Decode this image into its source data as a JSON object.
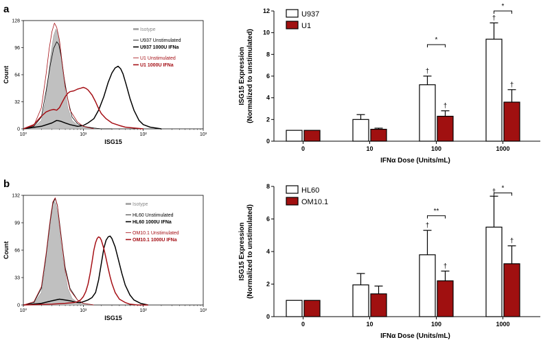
{
  "colors": {
    "red": "#A50F15",
    "dark_red_fill": "#A01010",
    "gray_fill": "#C0C0C0",
    "black": "#000000"
  },
  "chart_data": [
    {
      "id": "hist_a",
      "type": "line",
      "panel": "a",
      "xlabel": "ISG15",
      "ylabel": "Count",
      "xscale": "log",
      "xlim": [
        1,
        1000
      ],
      "ylim": [
        0,
        128
      ],
      "yticks": [
        "0",
        "32",
        "64",
        "96",
        "128"
      ],
      "xticks": [
        "10⁰",
        "10¹",
        "10²",
        "10³"
      ],
      "legend": [
        "Isotype",
        "U937 Unstimulated",
        "U937 1000U IFNa",
        "U1 Unstimulated",
        "U1 1000U IFNa"
      ],
      "series": [
        {
          "name": "Isotype",
          "style": "gray-fill",
          "x": [
            1,
            1.5,
            2,
            2.3,
            2.6,
            2.9,
            3.2,
            3.5,
            3.8,
            4.1,
            4.5,
            5,
            5.5,
            6.5,
            8,
            10,
            15,
            20
          ],
          "y": [
            0,
            2,
            10,
            30,
            60,
            90,
            110,
            118,
            112,
            95,
            70,
            45,
            25,
            10,
            4,
            2,
            1,
            0
          ]
        },
        {
          "name": "U937 Unstimulated",
          "style": "black-thin",
          "x": [
            1,
            1.5,
            2,
            2.4,
            2.8,
            3.2,
            3.6,
            3.9,
            4.3,
            4.8,
            5.5,
            6.5,
            8,
            10,
            15,
            20,
            30
          ],
          "y": [
            0,
            3,
            14,
            45,
            75,
            95,
            103,
            100,
            85,
            60,
            35,
            14,
            6,
            3,
            1,
            0,
            0
          ]
        },
        {
          "name": "U937 1000U IFNa",
          "style": "black-thick",
          "x": [
            1,
            2,
            3,
            3.6,
            4.2,
            5,
            6,
            8,
            10,
            12,
            15,
            18,
            22,
            26,
            30,
            34,
            38,
            42,
            46,
            52,
            60,
            70,
            85,
            100,
            130,
            200
          ],
          "y": [
            0,
            3,
            7,
            10,
            9,
            7,
            5,
            3,
            4,
            7,
            12,
            22,
            38,
            55,
            66,
            72,
            74,
            71,
            65,
            52,
            36,
            22,
            10,
            5,
            2,
            0
          ]
        },
        {
          "name": "U1 Unstimulated",
          "style": "red-thin",
          "x": [
            1,
            1.5,
            2,
            2.4,
            2.7,
            3,
            3.3,
            3.6,
            4,
            4.5,
            5,
            6,
            8,
            10,
            15
          ],
          "y": [
            0,
            4,
            25,
            65,
            95,
            115,
            125,
            120,
            105,
            75,
            50,
            22,
            8,
            3,
            0
          ]
        },
        {
          "name": "U1 1000U IFNa",
          "style": "red-thick",
          "x": [
            1,
            1.5,
            2,
            2.4,
            2.8,
            3.2,
            3.6,
            4,
            4.5,
            5,
            5.5,
            6,
            7,
            8,
            9,
            10,
            11,
            12,
            14,
            16,
            18,
            20,
            24,
            30,
            40,
            50,
            70,
            100
          ],
          "y": [
            0,
            5,
            15,
            20,
            22,
            23,
            22,
            25,
            32,
            38,
            42,
            44,
            45,
            47,
            48,
            49,
            48,
            46,
            40,
            32,
            24,
            18,
            12,
            7,
            4,
            2,
            1,
            0
          ]
        }
      ]
    },
    {
      "id": "bar_a",
      "type": "bar",
      "panel": "a",
      "categories": [
        "0",
        "10",
        "100",
        "1000"
      ],
      "xlabel": "IFNα Dose  (Units/mL)",
      "ylabel_line1": "ISG15  Expression",
      "ylabel_line2": "(Normalized to unstimulated)",
      "ylim": [
        0,
        12
      ],
      "yticks": [
        "0",
        "2",
        "4",
        "6",
        "8",
        "10",
        "12"
      ],
      "series": [
        {
          "name": "U937",
          "values": [
            1.0,
            2.0,
            5.2,
            9.4
          ],
          "errors": [
            0,
            0.45,
            0.8,
            1.5
          ]
        },
        {
          "name": "U1",
          "values": [
            1.0,
            1.1,
            2.3,
            3.6
          ],
          "errors": [
            0,
            0.1,
            0.5,
            1.15
          ]
        }
      ],
      "dagger": "†",
      "significance": [
        {
          "group": "100",
          "label": "*",
          "y": 8.9
        },
        {
          "group": "1000",
          "label": "*",
          "y": 12.0
        }
      ],
      "daggers_on": [
        {
          "group": "100",
          "series": 0
        },
        {
          "group": "100",
          "series": 1
        },
        {
          "group": "1000",
          "series": 0
        },
        {
          "group": "1000",
          "series": 1
        }
      ]
    },
    {
      "id": "hist_b",
      "type": "line",
      "panel": "b",
      "xlabel": "ISG15",
      "ylabel": "Count",
      "xscale": "log",
      "xlim": [
        1,
        1000
      ],
      "ylim": [
        0,
        132
      ],
      "yticks": [
        "0",
        "33",
        "66",
        "99",
        "132"
      ],
      "xticks": [
        "10⁰",
        "10¹",
        "10²",
        "10³"
      ],
      "legend": [
        "Isotype",
        "HL60 Unstimulated",
        "HL60 1000U IFNa",
        "OM10.1 Unstimulated",
        "OM10.1 1000U IFNa"
      ],
      "series": [
        {
          "name": "Isotype",
          "style": "gray-fill",
          "x": [
            1,
            1.5,
            2,
            2.3,
            2.6,
            2.9,
            3.2,
            3.5,
            3.8,
            4.1,
            4.5,
            5,
            5.5,
            6.5,
            8,
            10,
            15
          ],
          "y": [
            0,
            2,
            15,
            45,
            85,
            112,
            125,
            122,
            108,
            85,
            60,
            38,
            20,
            8,
            3,
            1,
            0
          ]
        },
        {
          "name": "HL60 Unstimulated",
          "style": "black-thin",
          "x": [
            1,
            1.5,
            2,
            2.4,
            2.8,
            3.1,
            3.4,
            3.7,
            4,
            4.5,
            5,
            6,
            8,
            10,
            15
          ],
          "y": [
            0,
            3,
            20,
            60,
            100,
            122,
            128,
            120,
            100,
            70,
            45,
            20,
            6,
            2,
            0
          ]
        },
        {
          "name": "HL60 1000U IFNa",
          "style": "black-thick",
          "x": [
            1,
            2,
            3,
            4,
            5,
            6,
            7,
            8,
            9,
            10,
            12,
            14,
            16,
            18,
            20,
            22,
            24,
            26,
            28,
            30,
            34,
            38,
            44,
            50,
            60,
            70,
            90,
            120
          ],
          "y": [
            0,
            2,
            5,
            7,
            6,
            5,
            4,
            3,
            3,
            4,
            6,
            9,
            15,
            30,
            50,
            68,
            78,
            82,
            83,
            80,
            70,
            56,
            38,
            24,
            12,
            6,
            2,
            0
          ]
        },
        {
          "name": "OM10.1 Unstimulated",
          "style": "red-thin",
          "x": [
            1,
            1.5,
            2,
            2.4,
            2.8,
            3.1,
            3.4,
            3.7,
            4,
            4.5,
            5,
            6,
            8,
            10,
            15
          ],
          "y": [
            0,
            4,
            22,
            62,
            102,
            124,
            129,
            120,
            98,
            68,
            42,
            18,
            6,
            2,
            0
          ]
        },
        {
          "name": "OM10.1 1000U IFNa",
          "style": "red-thick",
          "x": [
            1,
            3,
            5,
            7,
            8,
            9,
            10,
            11,
            12,
            13,
            14,
            15,
            16,
            17,
            18,
            19,
            20,
            22,
            24,
            26,
            28,
            30,
            34,
            40,
            50,
            60,
            80,
            120
          ],
          "y": [
            0,
            1,
            2,
            3,
            4,
            6,
            10,
            16,
            25,
            38,
            52,
            66,
            75,
            80,
            82,
            81,
            78,
            68,
            56,
            44,
            34,
            26,
            15,
            7,
            3,
            1,
            0,
            0
          ]
        }
      ]
    },
    {
      "id": "bar_b",
      "type": "bar",
      "panel": "b",
      "categories": [
        "0",
        "10",
        "100",
        "1000"
      ],
      "xlabel": "IFNα Dose  (Units/mL)",
      "ylabel_line1": "ISG15  Expression",
      "ylabel_line2": "(Normalized to unstimulated)",
      "ylim": [
        0,
        8
      ],
      "yticks": [
        "0",
        "2",
        "4",
        "6",
        "8"
      ],
      "series": [
        {
          "name": "HL60",
          "values": [
            1.0,
            1.95,
            3.8,
            5.5
          ],
          "errors": [
            0,
            0.7,
            1.5,
            1.9
          ]
        },
        {
          "name": "OM10.1",
          "values": [
            1.0,
            1.4,
            2.2,
            3.25
          ],
          "errors": [
            0,
            0.48,
            0.6,
            1.1
          ]
        }
      ],
      "dagger": "†",
      "significance": [
        {
          "group": "100",
          "label": "**",
          "y": 6.2
        },
        {
          "group": "1000",
          "label": "*",
          "y": 7.6
        }
      ],
      "daggers_on": [
        {
          "group": "100",
          "series": 0
        },
        {
          "group": "100",
          "series": 1
        },
        {
          "group": "1000",
          "series": 0
        },
        {
          "group": "1000",
          "series": 1
        }
      ]
    }
  ],
  "panels": {
    "a": "a",
    "b": "b"
  }
}
